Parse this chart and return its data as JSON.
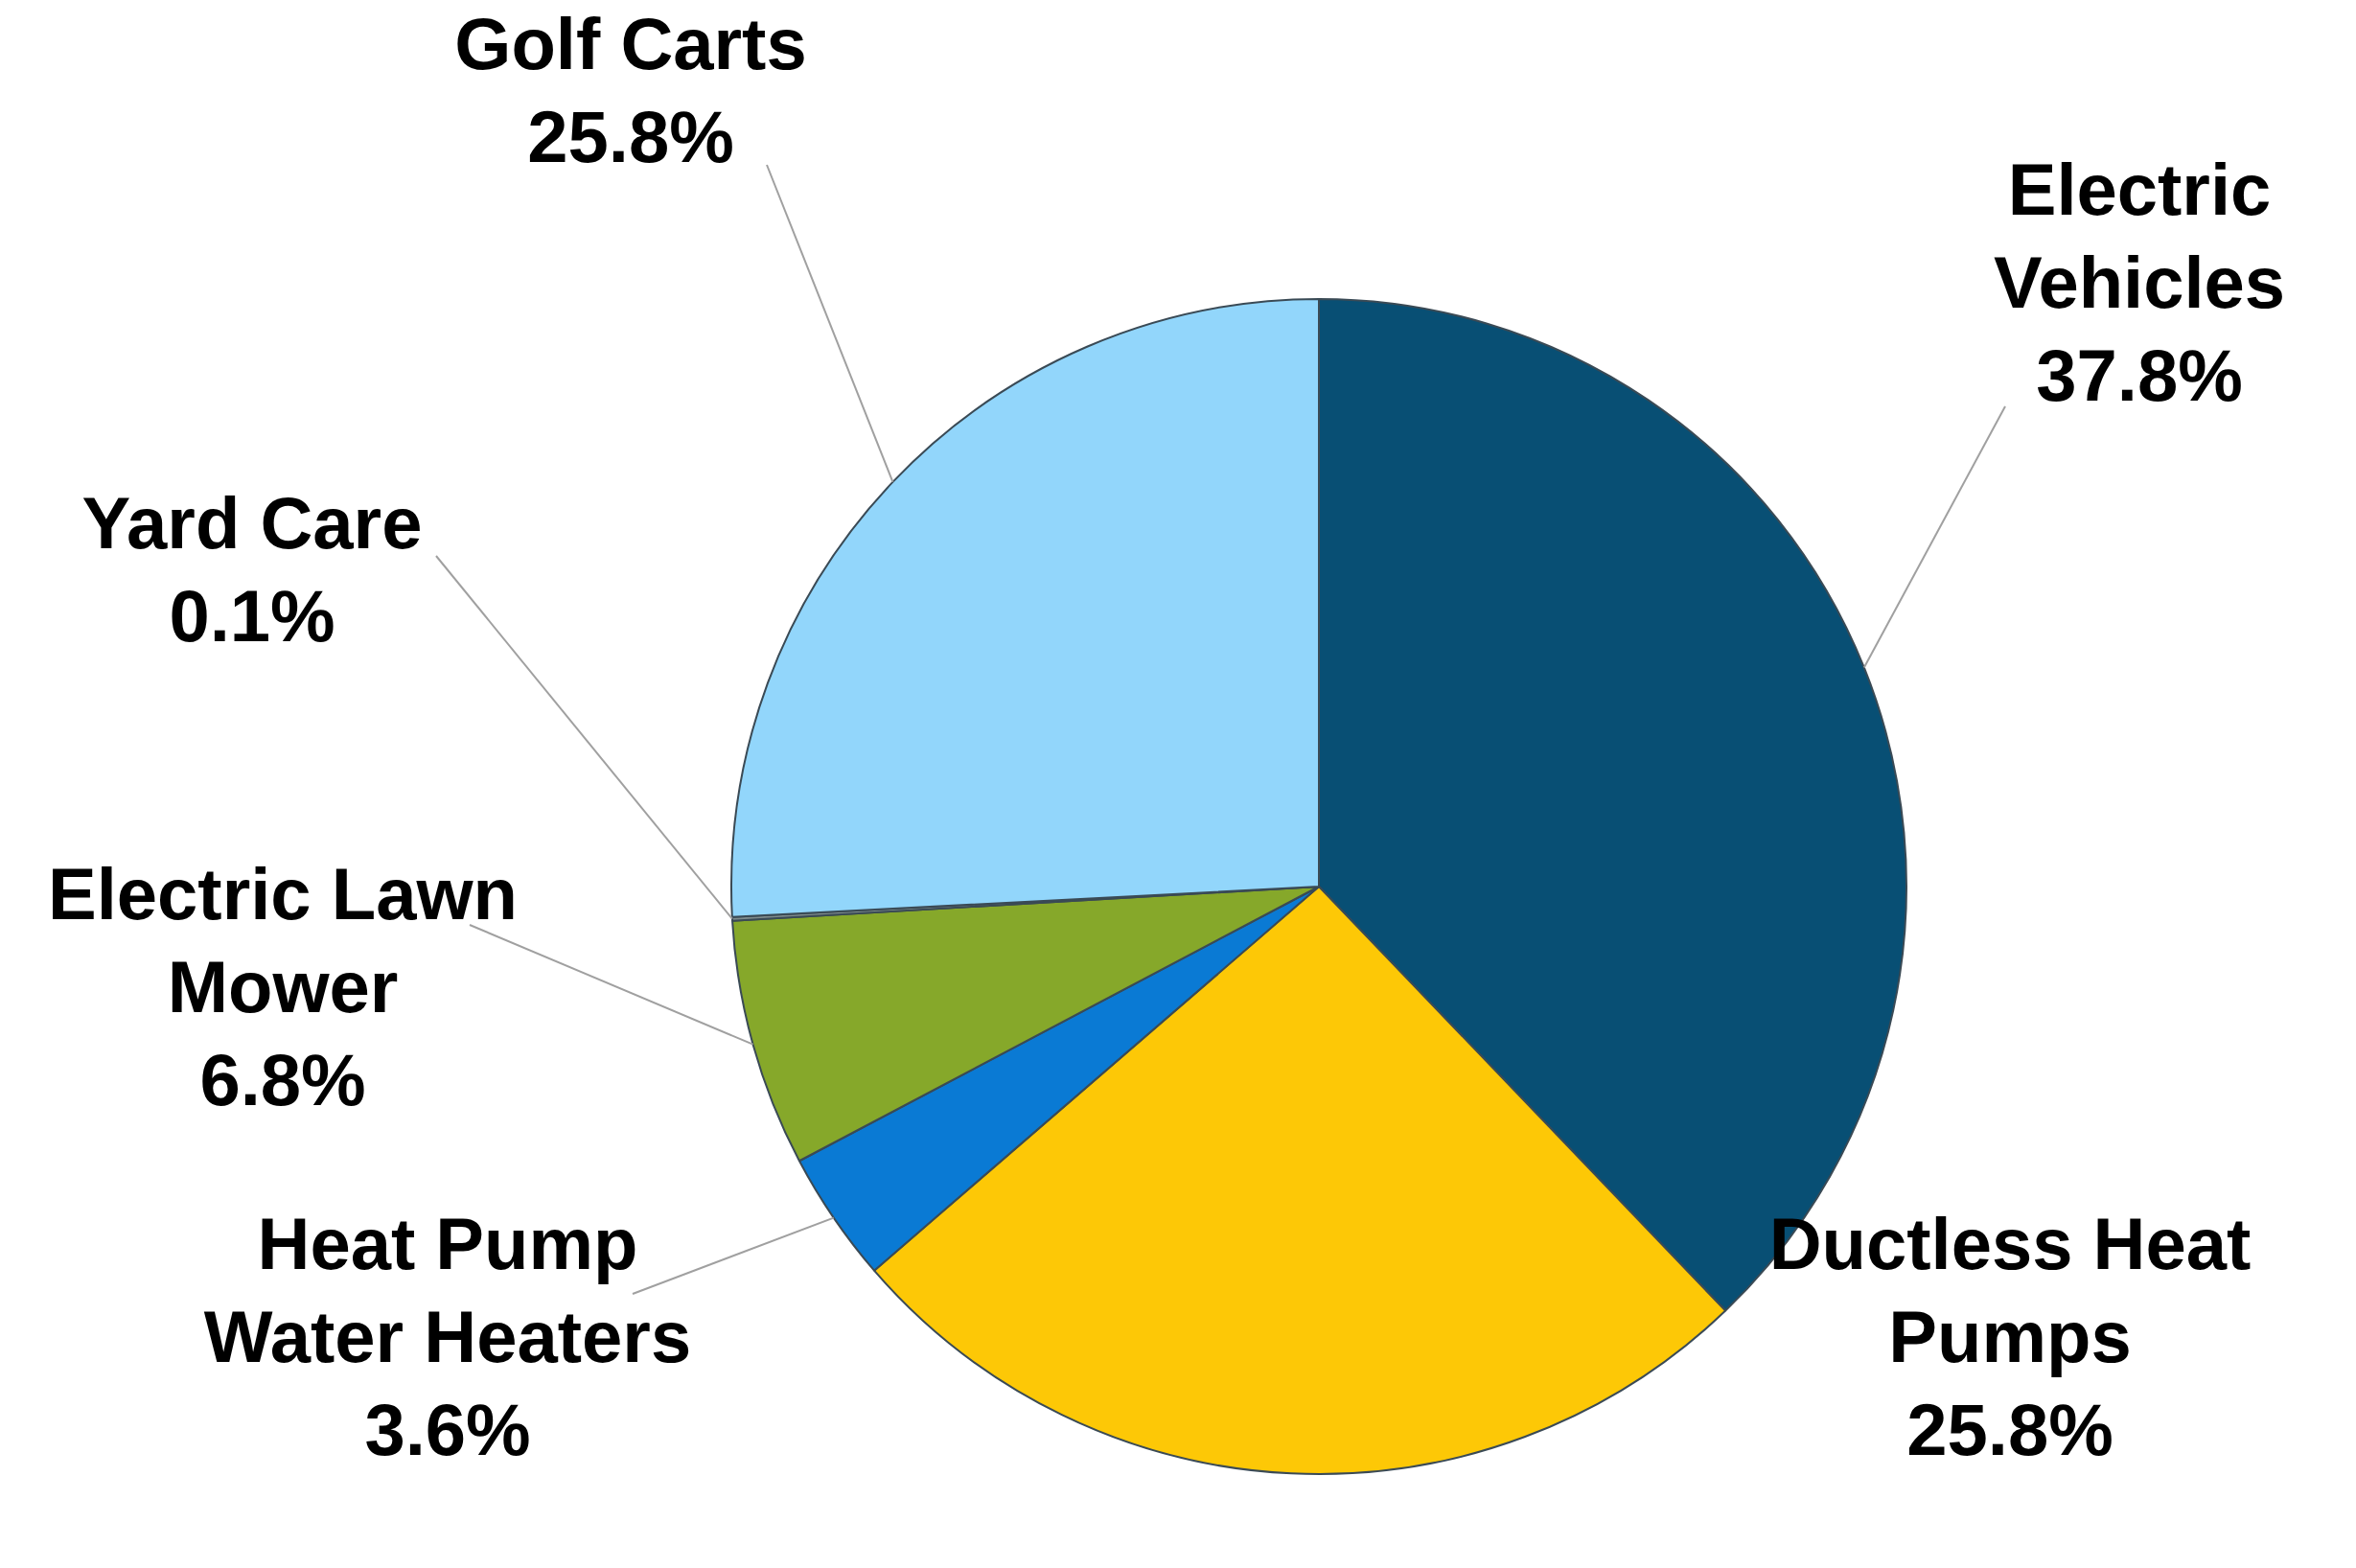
{
  "chart_data": {
    "type": "pie",
    "categories": [
      "Electric Vehicles",
      "Ductless Heat Pumps",
      "Heat Pump Water Heaters",
      "Electric Lawn Mower",
      "Yard Care",
      "Golf Carts"
    ],
    "values": [
      37.8,
      25.8,
      3.6,
      6.8,
      0.1,
      25.8
    ],
    "value_labels": [
      "37.8%",
      "25.8%",
      "3.6%",
      "6.8%",
      "0.1%",
      "25.8%"
    ],
    "colors": [
      "#084f74",
      "#fdc806",
      "#0a7ad4",
      "#86a82a",
      "#7f8c8d",
      "#92d6fb"
    ],
    "legend": false
  }
}
